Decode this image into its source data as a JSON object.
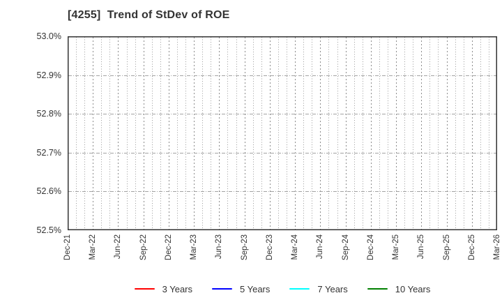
{
  "chart_data": {
    "type": "line",
    "title": "[4255]  Trend of StDev of ROE",
    "x_tick_labels": [
      "Dec-21",
      "Mar-22",
      "Jun-22",
      "Sep-22",
      "Dec-22",
      "Mar-23",
      "Jun-23",
      "Sep-23",
      "Dec-23",
      "Mar-24",
      "Jun-24",
      "Sep-24",
      "Dec-24",
      "Mar-25",
      "Jun-25",
      "Sep-25",
      "Dec-25",
      "Mar-26"
    ],
    "months_per_major_tick": 3,
    "ylim": [
      52.5,
      53.0
    ],
    "y_tick_values": [
      53.0,
      52.9,
      52.8,
      52.7,
      52.6,
      52.5
    ],
    "y_tick_labels": [
      "53.0%",
      "52.9%",
      "52.8%",
      "52.7%",
      "52.6%",
      "52.5%"
    ],
    "grid": true,
    "legend_position": "bottom",
    "series": [
      {
        "name": "3 Years",
        "color": "#ff0000",
        "values": []
      },
      {
        "name": "5 Years",
        "color": "#0000ff",
        "values": []
      },
      {
        "name": "7 Years",
        "color": "#00ffff",
        "values": []
      },
      {
        "name": "10 Years",
        "color": "#008000",
        "values": []
      }
    ]
  },
  "colors": {
    "background": "#ffffff",
    "text": "#333333",
    "axis_border": "#333333",
    "grid_minor": "#9a9a9a",
    "grid_major": "#8c8c8c",
    "grid_horizontal": "#a3a3a3"
  }
}
